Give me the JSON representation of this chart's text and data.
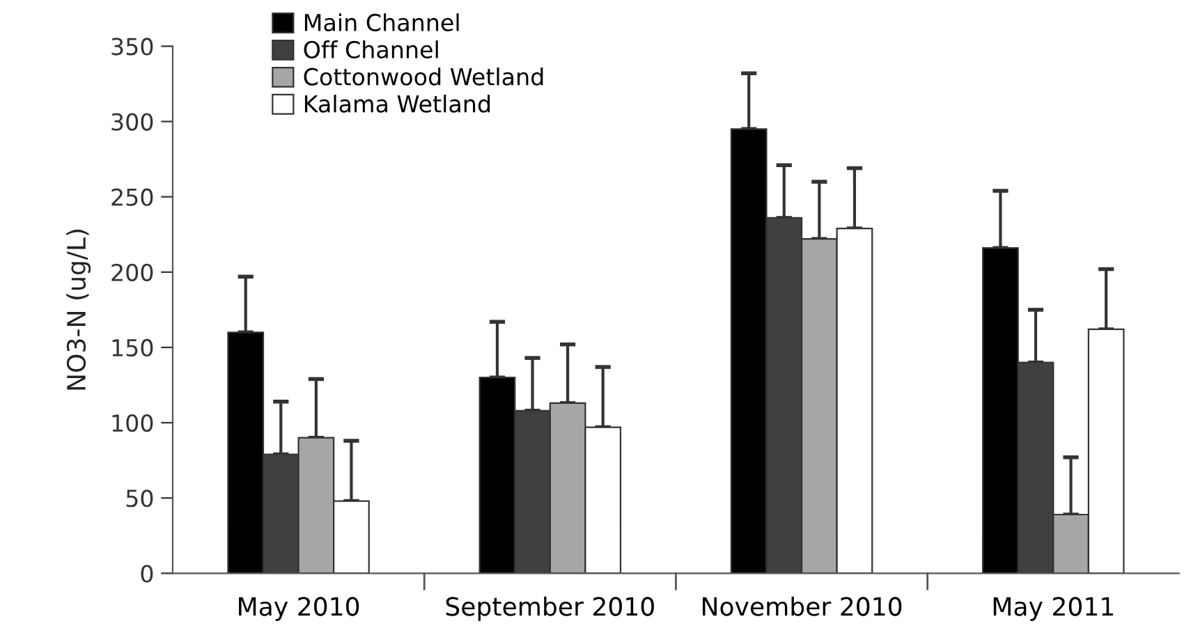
{
  "chart_data": {
    "type": "bar",
    "ylabel": "NO3-N (ug/L)",
    "categories": [
      "May 2010",
      "September 2010",
      "November 2010",
      "May 2011"
    ],
    "series": [
      {
        "name": "Main Channel",
        "color": "#000000",
        "values": [
          160,
          130,
          295,
          216
        ],
        "errors": [
          [
            160,
            197
          ],
          [
            130,
            167
          ],
          [
            295,
            332
          ],
          [
            216,
            254
          ]
        ]
      },
      {
        "name": "Off Channel",
        "color": "#404040",
        "values": [
          79,
          108,
          236,
          140
        ],
        "errors": [
          [
            79,
            114
          ],
          [
            108,
            143
          ],
          [
            236,
            271
          ],
          [
            140,
            175
          ]
        ]
      },
      {
        "name": "Cottonwood Wetland",
        "color": "#a6a6a6",
        "values": [
          90,
          113,
          222,
          39
        ],
        "errors": [
          [
            90,
            129
          ],
          [
            113,
            152
          ],
          [
            222,
            260
          ],
          [
            39,
            77
          ]
        ]
      },
      {
        "name": "Kalama Wetland",
        "color": "#ffffff",
        "values": [
          48,
          97,
          229,
          162
        ],
        "errors": [
          [
            48,
            88
          ],
          [
            97,
            137
          ],
          [
            229,
            269
          ],
          [
            162,
            202
          ]
        ]
      }
    ],
    "ylim": [
      0,
      350
    ],
    "yticks": [
      0,
      50,
      100,
      150,
      200,
      250,
      300,
      350
    ],
    "grid": false,
    "legend": "top left"
  }
}
